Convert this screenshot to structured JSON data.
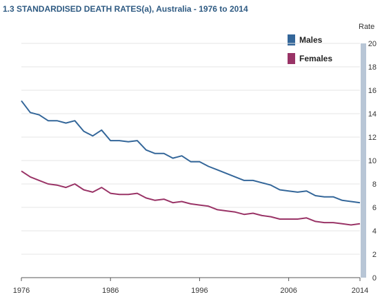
{
  "chart_data": {
    "type": "line",
    "title": "1.3 STANDARDISED DEATH RATES(a), Australia - 1976 to 2014",
    "ylabel": "Rate",
    "xlim": [
      1976,
      2014
    ],
    "ylim": [
      0,
      20
    ],
    "x_ticks": [
      1976,
      1986,
      1996,
      2006,
      2014
    ],
    "y_ticks": [
      0,
      2,
      4,
      6,
      8,
      10,
      12,
      14,
      16,
      18,
      20
    ],
    "grid": "horizontal",
    "legend_position": "top-right",
    "x": [
      1976,
      1977,
      1978,
      1979,
      1980,
      1981,
      1982,
      1983,
      1984,
      1985,
      1986,
      1987,
      1988,
      1989,
      1990,
      1991,
      1992,
      1993,
      1994,
      1995,
      1996,
      1997,
      1998,
      1999,
      2000,
      2001,
      2002,
      2003,
      2004,
      2005,
      2006,
      2007,
      2008,
      2009,
      2010,
      2011,
      2012,
      2013,
      2014
    ],
    "series": [
      {
        "name": "Males",
        "color": "#336699",
        "values": [
          15.1,
          14.1,
          13.9,
          13.4,
          13.4,
          13.2,
          13.4,
          12.5,
          12.1,
          12.6,
          11.7,
          11.7,
          11.6,
          11.7,
          10.9,
          10.6,
          10.6,
          10.2,
          10.4,
          9.9,
          9.9,
          9.5,
          9.2,
          8.9,
          8.6,
          8.3,
          8.3,
          8.1,
          7.9,
          7.5,
          7.4,
          7.3,
          7.4,
          7.0,
          6.9,
          6.9,
          6.6,
          6.5,
          6.4
        ]
      },
      {
        "name": "Females",
        "color": "#993366",
        "values": [
          9.1,
          8.6,
          8.3,
          8.0,
          7.9,
          7.7,
          8.0,
          7.5,
          7.3,
          7.7,
          7.2,
          7.1,
          7.1,
          7.2,
          6.8,
          6.6,
          6.7,
          6.4,
          6.5,
          6.3,
          6.2,
          6.1,
          5.8,
          5.7,
          5.6,
          5.4,
          5.5,
          5.3,
          5.2,
          5.0,
          5.0,
          5.0,
          5.1,
          4.8,
          4.7,
          4.7,
          4.6,
          4.5,
          4.6
        ]
      }
    ]
  }
}
